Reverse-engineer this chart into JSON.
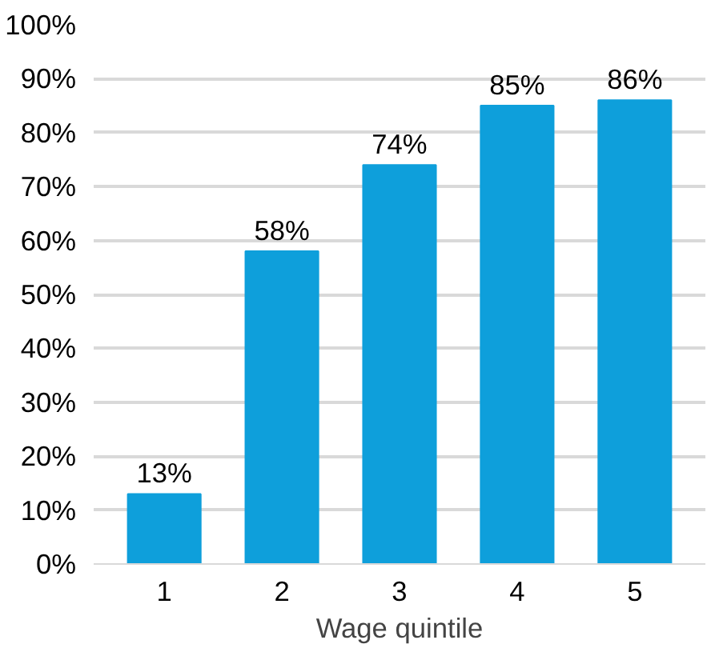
{
  "chart_data": {
    "type": "bar",
    "xlabel": "Wage quintile",
    "categories": [
      "1",
      "2",
      "3",
      "4",
      "5"
    ],
    "values": [
      13,
      58,
      74,
      85,
      86
    ],
    "color": "#0e9fdb",
    "value_labels": [
      "13%",
      "58%",
      "74%",
      "85%",
      "86%"
    ],
    "ylim": [
      0,
      100
    ],
    "yticks": [
      {
        "value": 0,
        "label": "0%"
      },
      {
        "value": 10,
        "label": "10%"
      },
      {
        "value": 20,
        "label": "20%"
      },
      {
        "value": 30,
        "label": "30%"
      },
      {
        "value": 40,
        "label": "40%"
      },
      {
        "value": 50,
        "label": "50%"
      },
      {
        "value": 60,
        "label": "60%"
      },
      {
        "value": 70,
        "label": "70%"
      },
      {
        "value": 80,
        "label": "80%"
      },
      {
        "value": 90,
        "label": "90%"
      },
      {
        "value": 100,
        "label": "100%"
      }
    ],
    "grid": "y"
  }
}
